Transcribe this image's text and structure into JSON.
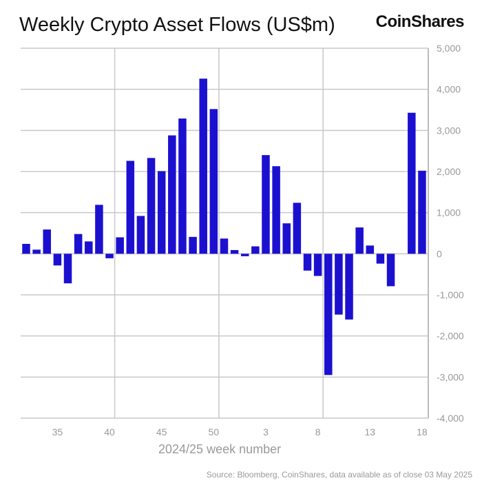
{
  "chart_data": {
    "type": "bar",
    "title": "Weekly Crypto Asset Flows (US$m)",
    "xlabel": "2024/25 week number",
    "ylabel": "",
    "ylim": [
      -4000,
      5000
    ],
    "yticks": [
      5000,
      4000,
      3000,
      2000,
      1000,
      0,
      -1000,
      -2000,
      -3000,
      -4000
    ],
    "ytick_labels": [
      "5,000",
      "4,000",
      "3,000",
      "2,000",
      "1,000",
      "0",
      "-1,000",
      "-2,000",
      "-3,000",
      "-4,000"
    ],
    "xtick_labels": [
      "35",
      "40",
      "45",
      "50",
      "3",
      "8",
      "13",
      "18"
    ],
    "grid": true,
    "y_axis_side": "right",
    "bar_color": "#1c10d0",
    "categories": [
      "32",
      "33",
      "34",
      "35",
      "36",
      "37",
      "38",
      "39",
      "40",
      "41",
      "42",
      "43",
      "44",
      "45",
      "46",
      "47",
      "48",
      "49",
      "50",
      "51",
      "52",
      "1",
      "2",
      "3",
      "4",
      "5",
      "6",
      "7",
      "8",
      "9",
      "10",
      "11",
      "12",
      "13",
      "14",
      "15",
      "16",
      "17",
      "18"
    ],
    "values": [
      240,
      100,
      590,
      -285,
      -720,
      480,
      300,
      1190,
      -110,
      400,
      2260,
      920,
      2330,
      2010,
      2880,
      3290,
      410,
      4260,
      3520,
      370,
      90,
      -60,
      180,
      2400,
      2130,
      740,
      1240,
      -410,
      -540,
      -2950,
      -1480,
      -1600,
      640,
      200,
      -240,
      -790,
      0,
      3430,
      2020
    ]
  },
  "logo": "CoinShares",
  "source": "Source: Bloomberg, CoinShares, data available as of close 03 May 2025"
}
